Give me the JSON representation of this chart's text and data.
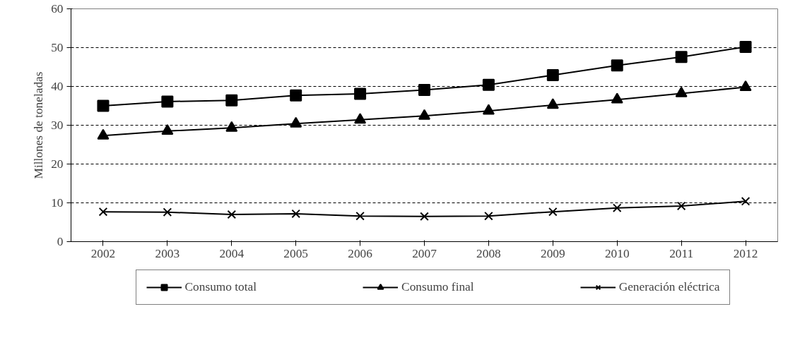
{
  "chart_data": {
    "type": "line",
    "ylabel": "Millones de toneladas",
    "categories": [
      "2002",
      "2003",
      "2004",
      "2005",
      "2006",
      "2007",
      "2008",
      "2009",
      "2010",
      "2011",
      "2012"
    ],
    "series": [
      {
        "name": "Consumo total",
        "color": "#000000",
        "marker": "square",
        "values": [
          35.0,
          36.1,
          36.4,
          37.7,
          38.1,
          39.1,
          40.4,
          42.9,
          45.4,
          47.6,
          50.2
        ]
      },
      {
        "name": "Consumo final",
        "color": "#000000",
        "marker": "triangle",
        "values": [
          27.3,
          28.5,
          29.3,
          30.4,
          31.4,
          32.4,
          33.7,
          35.2,
          36.6,
          38.2,
          39.8
        ]
      },
      {
        "name": "Generación eléctrica",
        "color": "#000000",
        "marker": "cross",
        "values": [
          7.7,
          7.6,
          7.0,
          7.2,
          6.6,
          6.5,
          6.6,
          7.7,
          8.7,
          9.2,
          10.4
        ]
      }
    ],
    "ylim": [
      0,
      60
    ],
    "yticks": [
      0,
      10,
      20,
      30,
      40,
      50,
      60
    ],
    "grid": "y",
    "legend": "bottom",
    "line_style": "solid"
  }
}
